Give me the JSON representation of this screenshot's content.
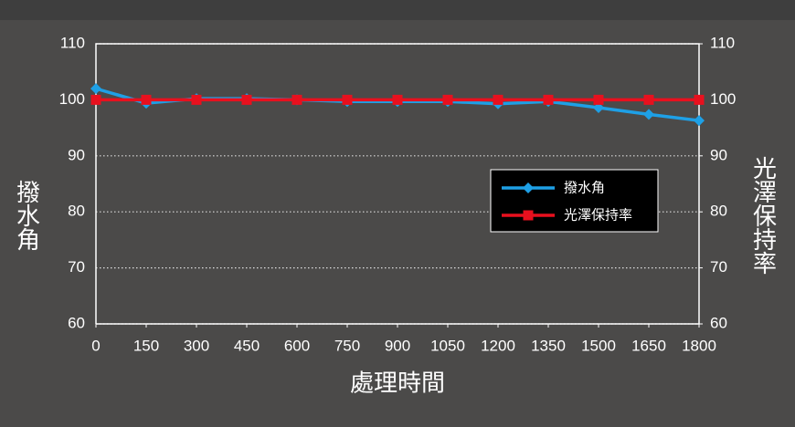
{
  "chart_data": {
    "type": "line",
    "xlabel": "處理時間",
    "ylabel": "撥水角",
    "y2label": "光澤保持率",
    "x": [
      0,
      150,
      300,
      450,
      600,
      750,
      900,
      1050,
      1200,
      1350,
      1500,
      1650,
      1800
    ],
    "xlim": [
      0,
      1800
    ],
    "xticks": [
      0,
      150,
      300,
      450,
      600,
      750,
      900,
      1050,
      1200,
      1350,
      1500,
      1650,
      1800
    ],
    "ylim": [
      60,
      110
    ],
    "yticks": [
      60,
      70,
      80,
      90,
      100,
      110
    ],
    "y2lim": [
      60,
      110
    ],
    "y2ticks": [
      60,
      70,
      80,
      90,
      100,
      110
    ],
    "grid": true,
    "series": [
      {
        "name": "撥水角",
        "color": "#1ea0e6",
        "marker": "diamond",
        "values": [
          102,
          99.4,
          100.2,
          100.2,
          100,
          99.7,
          99.7,
          99.7,
          99.3,
          99.7,
          98.6,
          97.4,
          96.3
        ]
      },
      {
        "name": "光澤保持率",
        "color": "#e8101e",
        "marker": "square",
        "axis": "y2",
        "values": [
          100,
          100,
          100,
          100,
          100,
          100,
          100,
          100,
          100,
          100,
          100,
          100,
          100
        ]
      }
    ]
  }
}
